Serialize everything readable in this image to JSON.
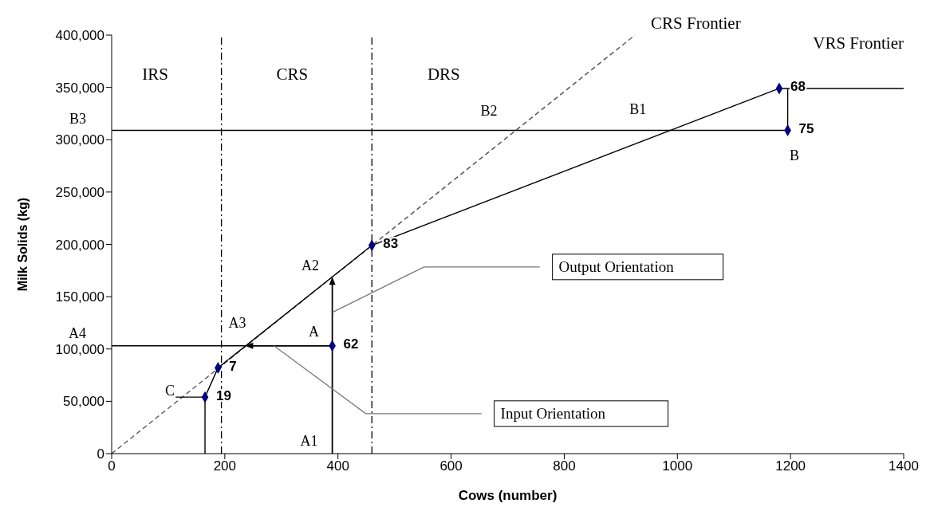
{
  "chart_data": {
    "type": "line",
    "xlabel": "Cows (number)",
    "ylabel": "Milk Solids (kg)",
    "xlim": [
      0,
      1400
    ],
    "xticks": [
      0,
      200,
      400,
      600,
      800,
      1000,
      1200,
      1400
    ],
    "ylim": [
      0,
      400000
    ],
    "yticks": [
      0,
      {
        "value": 50000,
        "label": "50,000"
      },
      {
        "value": 100000,
        "label": "100,000"
      },
      {
        "value": 150000,
        "label": "150,000"
      },
      {
        "value": 200000,
        "label": "200,000"
      },
      {
        "value": 250000,
        "label": "250,000"
      },
      {
        "value": 300000,
        "label": "300,000"
      },
      {
        "value": 350000,
        "label": "350,000"
      },
      {
        "value": 400000,
        "label": "400,000"
      }
    ],
    "grid": false,
    "series": [
      {
        "name": "CRS Frontier",
        "color": "#555555",
        "line_style": "dashed",
        "x": [
          0,
          925
        ],
        "values": [
          0,
          400000
        ]
      },
      {
        "name": "VRS Frontier",
        "color": "#000000",
        "line_style": "solid",
        "x": [
          165,
          165,
          188,
          460,
          1180,
          1400
        ],
        "values": [
          0,
          54000,
          82000,
          199000,
          349000,
          349000
        ]
      },
      {
        "color": "#000000",
        "line_style": "solid",
        "x": [
          0,
          1195,
          1195
        ],
        "values": [
          309000,
          309000,
          349000
        ]
      },
      {
        "color": "#000000",
        "line_style": "solid",
        "x": [
          0,
          236
        ],
        "values": [
          103000,
          103000
        ]
      },
      {
        "color": "#000000",
        "line_style": "solid",
        "x": [
          113,
          165
        ],
        "values": [
          54000,
          54000
        ]
      },
      {
        "type": "scatter",
        "color": "#00007f",
        "marker": "diamond",
        "x": [
          165,
          188,
          390,
          460,
          1180,
          1195
        ],
        "values": [
          54000,
          82000,
          103000,
          199000,
          349000,
          309000
        ]
      }
    ],
    "ref_lines": [
      {
        "axis": "x",
        "value": 194,
        "line_style": "dashed",
        "color": "#000000"
      },
      {
        "axis": "x",
        "value": 460,
        "line_style": "dashed",
        "color": "#000000"
      }
    ],
    "annotations": [
      "Output Orientation",
      "Input Orientation",
      "IRS",
      "CRS",
      "DRS",
      "B2",
      "B1",
      "B3",
      "B",
      "A2",
      {
        "text": "A3",
        "x": 236,
        "y": 103000
      },
      {
        "text": "A",
        "x": 390,
        "y": 103000
      },
      "A1",
      "A4",
      "C",
      {
        "text": "19",
        "x": 165,
        "y": 54000
      },
      {
        "text": "7",
        "x": 188,
        "y": 82000
      },
      {
        "text": "62",
        "x": 390,
        "y": 103000
      },
      {
        "text": "83",
        "x": 460,
        "y": 199000
      },
      {
        "text": "68",
        "x": 1180,
        "y": 349000
      },
      {
        "text": "75",
        "x": 1195,
        "y": 309000
      }
    ]
  }
}
